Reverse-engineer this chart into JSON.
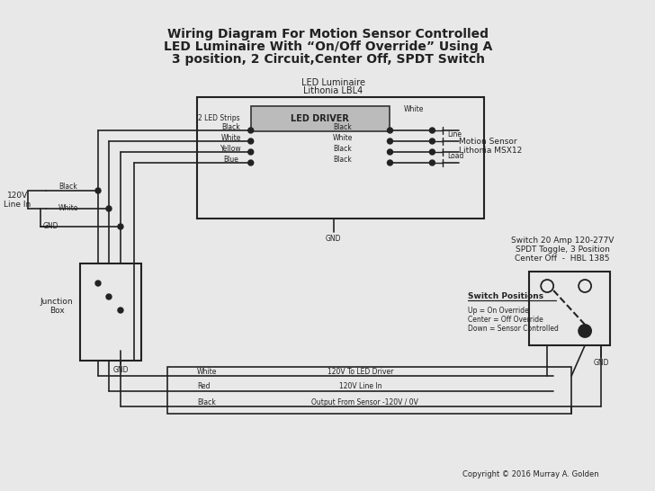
{
  "title_lines": [
    "Wiring Diagram For Motion Sensor Controlled",
    "LED Luminaire With “On/Off Override” Using A",
    "3 position, 2 Circuit,Center Off, SPDT Switch"
  ],
  "bg_color": "#e8e8e8",
  "line_color": "#222222",
  "copyright": "Copyright © 2016 Murray A. Golden"
}
